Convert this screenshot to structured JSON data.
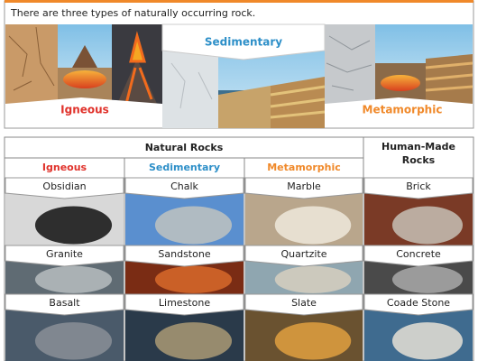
{
  "intro": {
    "text": "There are three types of naturally occurring rock.",
    "types": [
      "Igneous",
      "Sedimentary",
      "Metamorphic"
    ]
  },
  "table": {
    "group_header": "Natural Rocks",
    "human_made_header": "Human-Made Rocks",
    "columns": [
      "Igneous",
      "Sedimentary",
      "Metamorphic"
    ],
    "rows": [
      [
        "Obsidian",
        "Chalk",
        "Marble",
        "Brick"
      ],
      [
        "Granite",
        "Sandstone",
        "Quartzite",
        "Concrete"
      ],
      [
        "Basalt",
        "Limestone",
        "Slate",
        "Coade Stone"
      ]
    ]
  }
}
